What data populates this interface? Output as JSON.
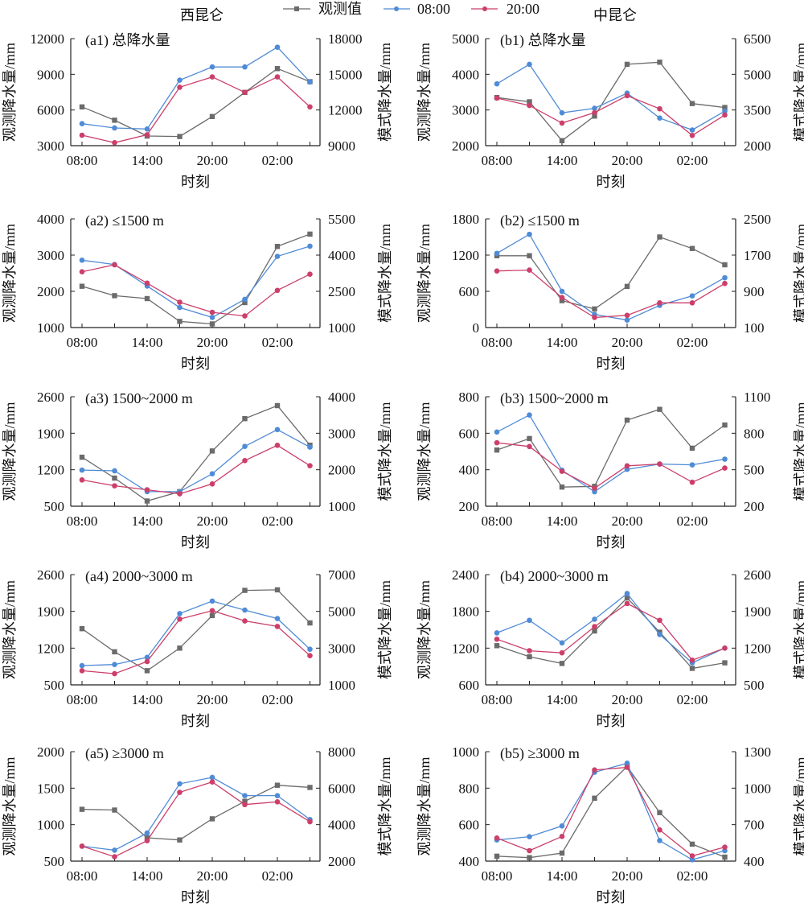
{
  "legend": [
    {
      "name": "观测值",
      "color": "#6b6b6b",
      "marker": "square"
    },
    {
      "name": "08:00",
      "color": "#4f8bd6",
      "marker": "circle"
    },
    {
      "name": "20:00",
      "color": "#cc3f6a",
      "marker": "circle"
    }
  ],
  "column_titles": [
    "西昆仑",
    "中昆仑"
  ],
  "chart_data": [
    {
      "id": "a1",
      "type": "line",
      "title": "(a1) 总降水量",
      "region": "西昆仑",
      "x": [
        "08:00",
        "11:00",
        "14:00",
        "17:00",
        "20:00",
        "23:00",
        "02:00",
        "05:00"
      ],
      "xticks": [
        "08:00",
        "14:00",
        "20:00",
        "02:00"
      ],
      "xlabel": "时刻",
      "ylabel_left": "观测降水量/mm",
      "ylabel_right": "模式降水量/mm",
      "ylim_left": [
        3000,
        12000
      ],
      "yticks_left": [
        3000,
        6000,
        9000,
        12000
      ],
      "ylim_right": [
        9000,
        18000
      ],
      "yticks_right": [
        9000,
        12000,
        15000,
        18000
      ],
      "series": [
        {
          "name": "观测值",
          "axis": "left",
          "values": [
            6260,
            5140,
            3810,
            3770,
            5450,
            7480,
            9480,
            8380
          ]
        },
        {
          "name": "08:00",
          "axis": "right",
          "values": [
            10850,
            10490,
            10400,
            14510,
            15620,
            15620,
            17280,
            14360
          ]
        },
        {
          "name": "20:00",
          "axis": "right",
          "values": [
            9880,
            9250,
            9920,
            13910,
            14780,
            13480,
            14780,
            12260
          ]
        }
      ]
    },
    {
      "id": "b1",
      "type": "line",
      "title": "(b1) 总降水量",
      "region": "中昆仑",
      "x": [
        "08:00",
        "11:00",
        "14:00",
        "17:00",
        "20:00",
        "23:00",
        "02:00",
        "05:00"
      ],
      "xticks": [
        "08:00",
        "14:00",
        "20:00",
        "02:00"
      ],
      "xlabel": "时刻",
      "ylabel_left": "观测降水量/mm",
      "ylabel_right": "模式降水量/mm",
      "ylim_left": [
        2000,
        5000
      ],
      "yticks_left": [
        2000,
        3000,
        4000,
        5000
      ],
      "ylim_right": [
        2000,
        6500
      ],
      "yticks_right": [
        2000,
        3500,
        5000,
        6500
      ],
      "series": [
        {
          "name": "观测值",
          "axis": "left",
          "values": [
            3350,
            3230,
            2140,
            2830,
            4280,
            4340,
            3180,
            3070
          ]
        },
        {
          "name": "08:00",
          "axis": "right",
          "values": [
            4600,
            5420,
            3380,
            3570,
            4210,
            3160,
            2660,
            3450
          ]
        },
        {
          "name": "20:00",
          "axis": "right",
          "values": [
            4000,
            3690,
            2950,
            3390,
            4100,
            3550,
            2430,
            3290
          ]
        }
      ]
    },
    {
      "id": "a2",
      "type": "line",
      "title": "(a2) ≤1500 m",
      "region": "西昆仑",
      "x": [
        "08:00",
        "11:00",
        "14:00",
        "17:00",
        "20:00",
        "23:00",
        "02:00",
        "05:00"
      ],
      "xticks": [
        "08:00",
        "14:00",
        "20:00",
        "02:00"
      ],
      "xlabel": "时刻",
      "ylabel_left": "观测降水量/mm",
      "ylabel_right": "模式降水量/mm",
      "ylim_left": [
        1000,
        4000
      ],
      "yticks_left": [
        1000,
        2000,
        3000,
        4000
      ],
      "ylim_right": [
        1000,
        5500
      ],
      "yticks_right": [
        1000,
        2500,
        4000,
        5500
      ],
      "series": [
        {
          "name": "观测值",
          "axis": "left",
          "values": [
            2140,
            1880,
            1800,
            1170,
            1100,
            1690,
            3240,
            3580
          ]
        },
        {
          "name": "08:00",
          "axis": "right",
          "values": [
            3790,
            3610,
            2720,
            1830,
            1420,
            2170,
            3950,
            4370
          ]
        },
        {
          "name": "20:00",
          "axis": "right",
          "values": [
            3310,
            3600,
            2840,
            2050,
            1630,
            1480,
            2540,
            3210
          ]
        }
      ]
    },
    {
      "id": "b2",
      "type": "line",
      "title": "(b2) ≤1500 m",
      "region": "中昆仑",
      "x": [
        "08:00",
        "11:00",
        "14:00",
        "17:00",
        "20:00",
        "23:00",
        "02:00",
        "05:00"
      ],
      "xticks": [
        "08:00",
        "14:00",
        "20:00",
        "02:00"
      ],
      "xlabel": "时刻",
      "ylabel_left": "观测降水量/mm",
      "ylabel_right": "模式降水量/mm",
      "ylim_left": [
        0,
        1800
      ],
      "yticks_left": [
        0,
        600,
        1200,
        1800
      ],
      "ylim_right": [
        100,
        2500
      ],
      "yticks_right": [
        100,
        900,
        1700,
        2500
      ],
      "series": [
        {
          "name": "观测值",
          "axis": "left",
          "values": [
            1190,
            1190,
            445,
            308,
            682,
            1500,
            1310,
            1040
          ]
        },
        {
          "name": "08:00",
          "axis": "right",
          "values": [
            1740,
            2160,
            900,
            390,
            265,
            590,
            800,
            1200
          ]
        },
        {
          "name": "20:00",
          "axis": "right",
          "values": [
            1350,
            1370,
            763,
            323,
            370,
            646,
            646,
            1074
          ]
        }
      ]
    },
    {
      "id": "a3",
      "type": "line",
      "title": "(a3) 1500~2000 m",
      "region": "西昆仑",
      "x": [
        "08:00",
        "11:00",
        "14:00",
        "17:00",
        "20:00",
        "23:00",
        "02:00",
        "05:00"
      ],
      "xticks": [
        "08:00",
        "14:00",
        "20:00",
        "02:00"
      ],
      "xlabel": "时刻",
      "ylabel_left": "观测降水量/mm",
      "ylabel_right": "模式降水量/mm",
      "ylim_left": [
        500,
        2600
      ],
      "yticks_left": [
        500,
        1200,
        1900,
        2600
      ],
      "ylim_right": [
        1000,
        4000
      ],
      "yticks_right": [
        1000,
        2000,
        3000,
        4000
      ],
      "series": [
        {
          "name": "观测值",
          "axis": "left",
          "values": [
            1440,
            1040,
            600,
            780,
            1560,
            2180,
            2430,
            1670
          ]
        },
        {
          "name": "08:00",
          "axis": "right",
          "values": [
            1990,
            1970,
            1400,
            1400,
            1890,
            2640,
            3100,
            2620
          ]
        },
        {
          "name": "20:00",
          "axis": "right",
          "values": [
            1720,
            1560,
            1450,
            1340,
            1610,
            2250,
            2670,
            2110
          ]
        }
      ]
    },
    {
      "id": "b3",
      "type": "line",
      "title": "(b3) 1500~2000 m",
      "region": "中昆仑",
      "x": [
        "08:00",
        "11:00",
        "14:00",
        "17:00",
        "20:00",
        "23:00",
        "02:00",
        "05:00"
      ],
      "xticks": [
        "08:00",
        "14:00",
        "20:00",
        "02:00"
      ],
      "xlabel": "时刻",
      "ylabel_left": "观测降水量/mm",
      "ylabel_right": "模式降水量/mm",
      "ylim_left": [
        200,
        800
      ],
      "yticks_left": [
        200,
        400,
        600,
        800
      ],
      "ylim_right": [
        200,
        1100
      ],
      "yticks_right": [
        200,
        500,
        800,
        1100
      ],
      "series": [
        {
          "name": "观测值",
          "axis": "left",
          "values": [
            508,
            571,
            305,
            309,
            672,
            731,
            518,
            645
          ]
        },
        {
          "name": "08:00",
          "axis": "right",
          "values": [
            810,
            950,
            496,
            319,
            503,
            547,
            540,
            587
          ]
        },
        {
          "name": "20:00",
          "axis": "right",
          "values": [
            722,
            691,
            487,
            348,
            532,
            547,
            397,
            514
          ]
        }
      ]
    },
    {
      "id": "a4",
      "type": "line",
      "title": "(a4) 2000~3000 m",
      "region": "西昆仑",
      "x": [
        "08:00",
        "11:00",
        "14:00",
        "17:00",
        "20:00",
        "23:00",
        "02:00",
        "05:00"
      ],
      "xticks": [
        "08:00",
        "14:00",
        "20:00",
        "02:00"
      ],
      "xlabel": "时刻",
      "ylabel_left": "观测降水量/mm",
      "ylabel_right": "模式降水量/mm",
      "ylim_left": [
        500,
        2600
      ],
      "yticks_left": [
        500,
        1200,
        1900,
        2600
      ],
      "ylim_right": [
        1000,
        7000
      ],
      "yticks_right": [
        1000,
        3000,
        5000,
        7000
      ],
      "series": [
        {
          "name": "观测值",
          "axis": "left",
          "values": [
            1570,
            1130,
            770,
            1200,
            1820,
            2300,
            2310,
            1680
          ]
        },
        {
          "name": "08:00",
          "axis": "right",
          "values": [
            2050,
            2110,
            2500,
            4880,
            5560,
            5070,
            4610,
            2940
          ]
        },
        {
          "name": "20:00",
          "axis": "right",
          "values": [
            1770,
            1610,
            2270,
            4580,
            5040,
            4480,
            4180,
            2590
          ]
        }
      ]
    },
    {
      "id": "b4",
      "type": "line",
      "title": "(b4) 2000~3000 m",
      "region": "中昆仑",
      "x": [
        "08:00",
        "11:00",
        "14:00",
        "17:00",
        "20:00",
        "23:00",
        "02:00",
        "05:00"
      ],
      "xticks": [
        "08:00",
        "14:00",
        "20:00",
        "02:00"
      ],
      "xlabel": "时刻",
      "ylabel_left": "观测降水量/mm",
      "ylabel_right": "模式降水量/mm",
      "ylim_left": [
        600,
        2400
      ],
      "yticks_left": [
        600,
        1200,
        1800,
        2400
      ],
      "ylim_right": [
        500,
        2600
      ],
      "yticks_right": [
        500,
        1200,
        1900,
        2600
      ],
      "series": [
        {
          "name": "观测值",
          "axis": "left",
          "values": [
            1240,
            1060,
            950,
            1480,
            2020,
            1460,
            870,
            960
          ]
        },
        {
          "name": "08:00",
          "axis": "right",
          "values": [
            1490,
            1730,
            1300,
            1750,
            2240,
            1460,
            920,
            1200
          ]
        },
        {
          "name": "20:00",
          "axis": "right",
          "values": [
            1370,
            1150,
            1110,
            1610,
            2050,
            1730,
            970,
            1200
          ]
        }
      ]
    },
    {
      "id": "a5",
      "type": "line",
      "title": "(a5) ≥3000 m",
      "region": "西昆仑",
      "x": [
        "08:00",
        "11:00",
        "14:00",
        "17:00",
        "20:00",
        "23:00",
        "02:00",
        "05:00"
      ],
      "xticks": [
        "08:00",
        "14:00",
        "20:00",
        "02:00"
      ],
      "xlabel": "时刻",
      "ylabel_left": "观测降水量/mm",
      "ylabel_right": "模式降水量/mm",
      "ylim_left": [
        500,
        2000
      ],
      "yticks_left": [
        500,
        1000,
        1500,
        2000
      ],
      "ylim_right": [
        2000,
        8000
      ],
      "yticks_right": [
        2000,
        4000,
        6000,
        8000
      ],
      "series": [
        {
          "name": "观测值",
          "axis": "left",
          "values": [
            1210,
            1200,
            820,
            790,
            1080,
            1320,
            1540,
            1510
          ]
        },
        {
          "name": "08:00",
          "axis": "right",
          "values": [
            2820,
            2600,
            3540,
            6240,
            6590,
            5590,
            5590,
            4280
          ]
        },
        {
          "name": "20:00",
          "axis": "right",
          "values": [
            2820,
            2240,
            3120,
            5770,
            6340,
            5100,
            5250,
            4160
          ]
        }
      ]
    },
    {
      "id": "b5",
      "type": "line",
      "title": "(b5) ≥3000 m",
      "region": "中昆仑",
      "x": [
        "08:00",
        "11:00",
        "14:00",
        "17:00",
        "20:00",
        "23:00",
        "02:00",
        "05:00"
      ],
      "xticks": [
        "08:00",
        "14:00",
        "20:00",
        "02:00"
      ],
      "xlabel": "时刻",
      "ylabel_left": "观测降水量/mm",
      "ylabel_right": "模式降水量/mm",
      "ylim_left": [
        400,
        1000
      ],
      "yticks_left": [
        400,
        600,
        800,
        1000
      ],
      "ylim_right": [
        400,
        1300
      ],
      "yticks_right": [
        400,
        700,
        1000,
        1300
      ],
      "series": [
        {
          "name": "观测值",
          "axis": "left",
          "values": [
            427,
            419,
            444,
            745,
            919,
            666,
            493,
            422
          ]
        },
        {
          "name": "08:00",
          "axis": "right",
          "values": [
            574,
            601,
            689,
            1131,
            1205,
            569,
            411,
            486
          ]
        },
        {
          "name": "20:00",
          "axis": "right",
          "values": [
            590,
            486,
            603,
            1150,
            1171,
            657,
            443,
            515
          ]
        }
      ]
    }
  ]
}
